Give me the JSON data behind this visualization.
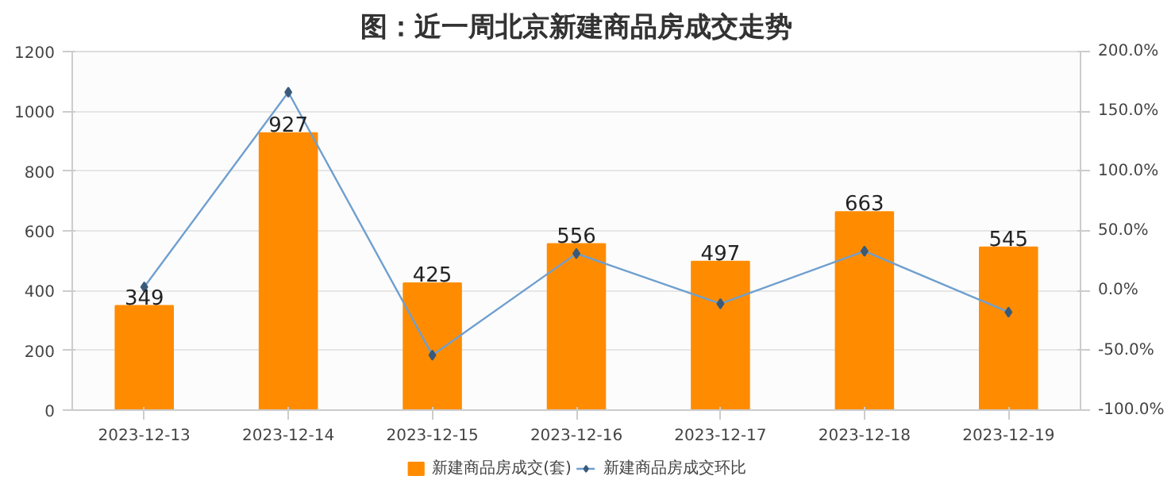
{
  "chart_data": {
    "type": "bar",
    "title": "图：近一周北京新建商品房成交走势",
    "categories": [
      "2023-12-13",
      "2023-12-14",
      "2023-12-15",
      "2023-12-16",
      "2023-12-17",
      "2023-12-18",
      "2023-12-19"
    ],
    "series": [
      {
        "name": "新建商品房成交(套)",
        "color": "#ff8c00",
        "values": [
          349,
          927,
          425,
          556,
          497,
          663,
          545
        ],
        "data_labels": true
      },
      {
        "name": "新建商品房成交环比",
        "type": "line",
        "axis": "y2",
        "color": "#6f9fcf",
        "marker": "diamond",
        "values": [
          3,
          166,
          -54,
          31,
          -11,
          33,
          -18
        ]
      }
    ],
    "ylim": [
      0,
      1200
    ],
    "yticks": [
      0,
      200,
      400,
      600,
      800,
      1000,
      1200
    ],
    "y2lim": [
      -100,
      200
    ],
    "y2ticks": [
      {
        "value": -100,
        "label": "-100.0%"
      },
      {
        "value": -50,
        "label": "-50.0%"
      },
      {
        "value": 0,
        "label": "0.0%"
      },
      {
        "value": 50,
        "label": "50.0%"
      },
      {
        "value": 100,
        "label": "100.0%"
      },
      {
        "value": 150,
        "label": "150.0%"
      },
      {
        "value": 200,
        "label": "200.0%"
      }
    ],
    "grid": "y",
    "legend": "bottom"
  }
}
